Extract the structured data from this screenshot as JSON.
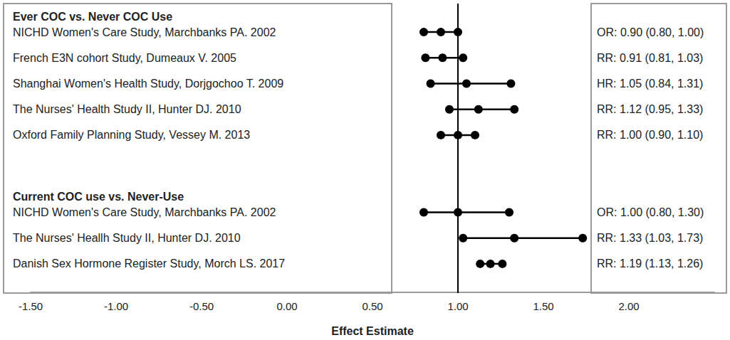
{
  "chart_data": {
    "type": "forest",
    "xlabel": "Effect Estimate",
    "xlim": [
      -1.5,
      2.5
    ],
    "xticks": [
      {
        "value": -1.5,
        "label": "-1.50"
      },
      {
        "value": -1.0,
        "label": "-1.00"
      },
      {
        "value": -0.5,
        "label": "-0.50"
      },
      {
        "value": 0,
        "label": "0.00"
      },
      {
        "value": 0.5,
        "label": "0.50"
      },
      {
        "value": 1.0,
        "label": "1.00"
      },
      {
        "value": 1.5,
        "label": "1.50"
      },
      {
        "value": 2.0,
        "label": "2.00"
      }
    ],
    "reference_line": 1.0,
    "grid": false,
    "color": "#000000",
    "marker": "circle",
    "groups": [
      {
        "title": "Ever COC vs. Never COC Use",
        "studies": [
          {
            "name": "NICHD Women's Care Study, Marchbanks PA. 2002",
            "estimate": 0.9,
            "lower": 0.8,
            "upper": 1.0,
            "label": "OR: 0.90 (0.80, 1.00)"
          },
          {
            "name": "French E3N cohort Study, Dumeaux V. 2005",
            "estimate": 0.91,
            "lower": 0.81,
            "upper": 1.03,
            "label": "RR: 0.91 (0.81, 1.03)"
          },
          {
            "name": "Shanghai Women's Health Study, Dorjgochoo T. 2009",
            "estimate": 1.05,
            "lower": 0.84,
            "upper": 1.31,
            "label": "HR: 1.05 (0.84, 1.31)"
          },
          {
            "name": "The Nurses' Health Study II, Hunter DJ. 2010",
            "estimate": 1.12,
            "lower": 0.95,
            "upper": 1.33,
            "label": "RR: 1.12 (0.95, 1.33)"
          },
          {
            "name": "Oxford Family Planning Study, Vessey M. 2013",
            "estimate": 1.0,
            "lower": 0.9,
            "upper": 1.1,
            "label": "RR: 1.00 (0.90, 1.10)"
          }
        ]
      },
      {
        "title": "Current COC use vs. Never-Use",
        "studies": [
          {
            "name": "NICHD Women's Care Study, Marchbanks PA. 2002",
            "estimate": 1.0,
            "lower": 0.8,
            "upper": 1.3,
            "label": "OR: 1.00 (0.80, 1.30)"
          },
          {
            "name": "The Nurses' Heallh Study II, Hunter DJ. 2010",
            "estimate": 1.33,
            "lower": 1.03,
            "upper": 1.73,
            "label": "RR: 1.33 (1.03, 1.73)"
          },
          {
            "name": "Danish Sex Hormone Register Study, Morch LS. 2017",
            "estimate": 1.19,
            "lower": 1.13,
            "upper": 1.26,
            "label": "RR: 1.19 (1.13, 1.26)"
          }
        ]
      }
    ]
  }
}
